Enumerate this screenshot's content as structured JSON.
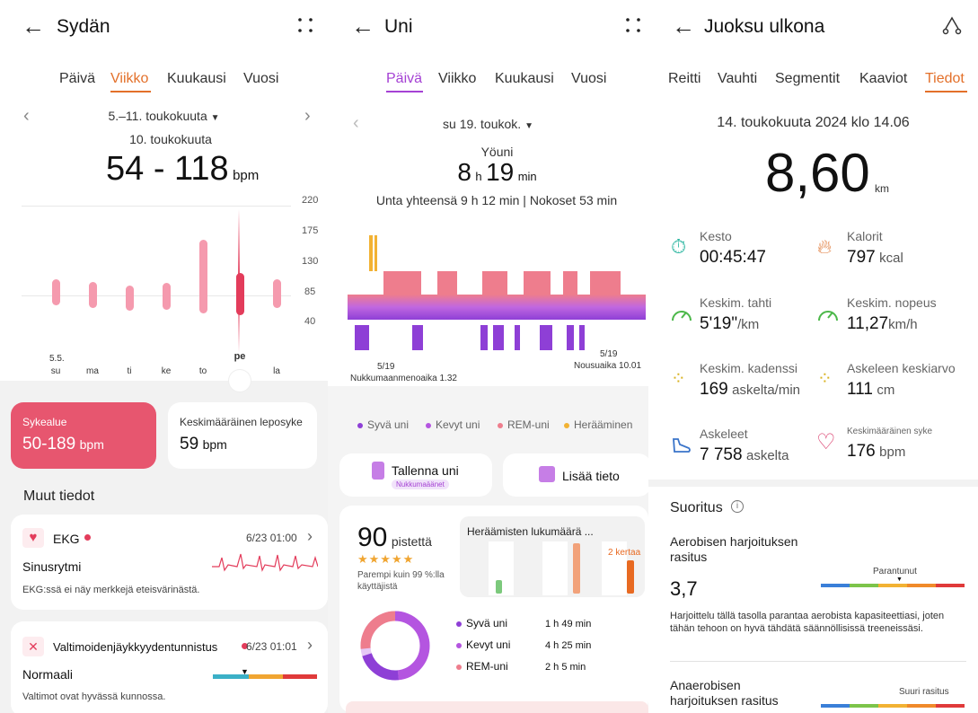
{
  "heart": {
    "title": "Sydän",
    "tabs": [
      "Päivä",
      "Viikko",
      "Kuukausi",
      "Vuosi"
    ],
    "range": "5.–11. toukokuuta",
    "date": "10. toukokuuta",
    "value": "54 - 118",
    "unit": "bpm",
    "y_ticks": [
      "220",
      "175",
      "130",
      "85",
      "40"
    ],
    "days": [
      "su",
      "ma",
      "ti",
      "ke",
      "to",
      "pe",
      "la"
    ],
    "day_dates": [
      "5.5.",
      "",
      "",
      "",
      "",
      "",
      ""
    ],
    "selected_day": "pe",
    "zone_card": {
      "label": "Sykealue",
      "value": "50-189",
      "unit": "bpm"
    },
    "rest_card": {
      "label": "Keskimääräinen leposyke",
      "value": "59",
      "unit": "bpm"
    },
    "more_title": "Muut tiedot",
    "ekg": {
      "title": "EKG",
      "time": "6/23 01:00",
      "status": "Sinusrytmi",
      "note": "EKG:ssä ei näy merkkejä eteisvärinästä."
    },
    "art": {
      "title": "Valtimoidenjäykkyydentunnistus",
      "time": "6/23 01:01",
      "status": "Normaali",
      "note": "Valtimot ovat hyvässä kunnossa."
    },
    "colors": {
      "accent": "#e3702a",
      "bar": "#f59aae",
      "selected": "#e33c5b",
      "card": "#e7566f"
    }
  },
  "chart_data": {
    "type": "bar",
    "title": "",
    "categories": [
      "su",
      "ma",
      "ti",
      "ke",
      "to",
      "pe",
      "la"
    ],
    "series": [
      {
        "name": "min",
        "values": [
          68,
          64,
          60,
          62,
          56,
          54,
          64
        ]
      },
      {
        "name": "max",
        "values": [
          108,
          104,
          98,
          103,
          168,
          118,
          108
        ]
      }
    ],
    "ylim": [
      40,
      220
    ],
    "xlabel": "",
    "ylabel": ""
  },
  "sleep": {
    "title": "Uni",
    "tabs": [
      "Päivä",
      "Viikko",
      "Kuukausi",
      "Vuosi"
    ],
    "date": "su 19. toukok.",
    "label": "Yöuni",
    "hours": "8",
    "h": "h",
    "minutes": "19",
    "min": "min",
    "summary": "Unta yhteensä 9 h 12 min | Nokoset 53 min",
    "start_date": "5/19",
    "start_label": "Nukkumaanmenoaika 1.32",
    "end_date": "5/19",
    "end_label": "Nousuaika 10.01",
    "legend": [
      {
        "label": "Syvä uni",
        "color": "#8e3fd6"
      },
      {
        "label": "Kevyt uni",
        "color": "#b455e0"
      },
      {
        "label": "REM-uni",
        "color": "#ee7d8d"
      },
      {
        "label": "Herääminen",
        "color": "#f2b233"
      }
    ],
    "btn_record": "Tallenna uni",
    "btn_record_badge": "Nukkumaäänet",
    "btn_add": "Lisää tieto",
    "score": "90",
    "score_unit": "pistettä",
    "stars": "★★★★★",
    "score_note": "Parempi kuin 99 %:lla käyttäjistä",
    "wake_title": "Heräämisten lukumäärä ...",
    "wake_count": "2 kertaa",
    "stages": [
      {
        "label": "Syvä uni",
        "value": "1 h 49 min",
        "color": "#8e3fd6"
      },
      {
        "label": "Kevyt uni",
        "value": "4 h 25 min",
        "color": "#b455e0"
      },
      {
        "label": "REM-uni",
        "value": "2 h 5 min",
        "color": "#ee7d8d"
      }
    ]
  },
  "run": {
    "title": "Juoksu ulkona",
    "tabs": [
      "Reitti",
      "Vauhti",
      "Segmentit",
      "Kaaviot",
      "Tiedot"
    ],
    "datetime": "14. toukokuuta 2024 klo 14.06",
    "distance": "8,60",
    "distance_unit": "km",
    "stats": [
      {
        "label": "Kesto",
        "value": "00:45:47",
        "unit": "",
        "icon": "stopwatch-icon"
      },
      {
        "label": "Kalorit",
        "value": "797",
        "unit": "kcal",
        "icon": "flame-icon"
      },
      {
        "label": "Keskim. tahti",
        "value": "5'19\"",
        "unit": "/km",
        "icon": "speedometer-icon"
      },
      {
        "label": "Keskim. nopeus",
        "value": "11,27",
        "unit": "km/h",
        "icon": "speedometer-icon"
      },
      {
        "label": "Keskim. kadenssi",
        "value": "169",
        "unit": "askelta/min",
        "icon": "footprints-icon"
      },
      {
        "label": "Askeleen keskiarvo",
        "value": "111",
        "unit": "cm",
        "icon": "footprints-icon"
      },
      {
        "label": "Askeleet",
        "value": "7 758",
        "unit": "askelta",
        "icon": "shoe-icon"
      },
      {
        "label": "Keskimääräinen syke",
        "value": "176",
        "unit": "bpm",
        "icon": "heart-icon"
      }
    ],
    "perf_title": "Suoritus",
    "aero_title": "Aerobisen harjoituksen rasitus",
    "aero_value": "3,7",
    "aero_level": "Parantunut",
    "aero_note": "Harjoittelu tällä tasolla parantaa aerobista kapasiteettiasi, joten tähän tehoon on hyvä tähdätä säännöllisissä treeneissäsi.",
    "anaero_title": "Anaerobisen harjoituksen rasitus",
    "anaero_level": "Suuri rasitus"
  }
}
